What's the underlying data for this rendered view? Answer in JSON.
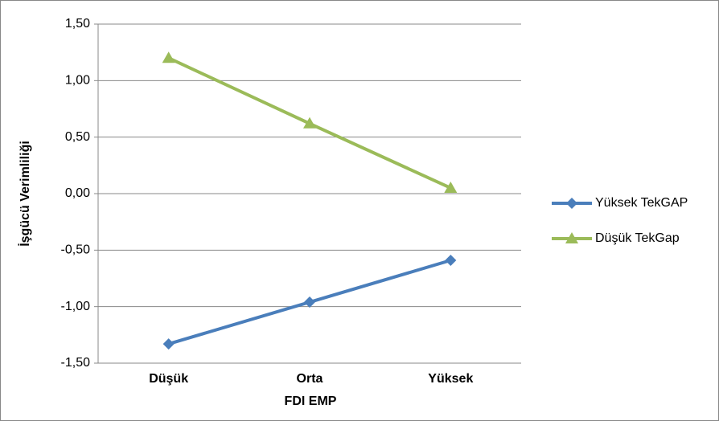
{
  "chart_data": {
    "type": "line",
    "y_label": "İşgücü Verimliliği",
    "x_label": "FDI EMP",
    "categories": [
      "Düşük",
      "Orta",
      "Yüksek"
    ],
    "series": [
      {
        "name": "Yüksek TekGAP",
        "color": "#4a7ebb",
        "marker": "diamond",
        "values": [
          -1.33,
          -0.96,
          -0.59
        ]
      },
      {
        "name": "Düşük TekGap",
        "color": "#9bbb59",
        "marker": "triangle",
        "values": [
          1.2,
          0.62,
          0.05
        ]
      }
    ],
    "ylim": [
      -1.5,
      1.5
    ],
    "yticks": [
      {
        "value": -1.5,
        "label": "-1,50"
      },
      {
        "value": -1.0,
        "label": "-1,00"
      },
      {
        "value": -0.5,
        "label": "-0,50"
      },
      {
        "value": 0,
        "label": "0,00"
      },
      {
        "value": 0.5,
        "label": "0,50"
      },
      {
        "value": 1.0,
        "label": "1,00"
      },
      {
        "value": 1.5,
        "label": "1,50"
      }
    ],
    "grid": true,
    "legend": "right"
  }
}
